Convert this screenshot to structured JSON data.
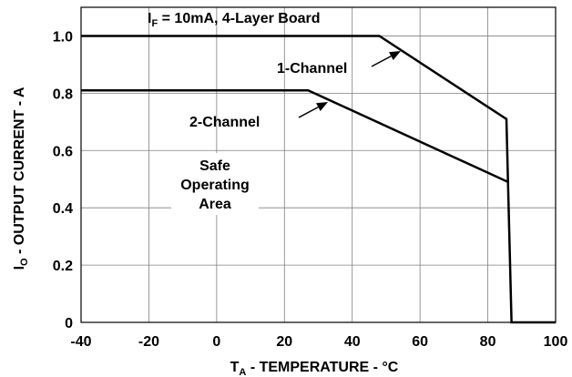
{
  "chart_data": {
    "type": "line",
    "title": "",
    "xlabel": {
      "main": "T",
      "sub": "A",
      "rest": " - TEMPERATURE - °C"
    },
    "ylabel": {
      "main": "I",
      "sub": "O",
      "rest": " - OUTPUT CURRENT - A"
    },
    "xlim": [
      -40,
      100
    ],
    "ylim": [
      0,
      1.1
    ],
    "x_ticks": [
      "-40",
      "-20",
      "0",
      "20",
      "40",
      "60",
      "80",
      "100"
    ],
    "y_ticks": [
      "0",
      "0.2",
      "0.4",
      "0.6",
      "0.8",
      "1.0"
    ],
    "grid": true,
    "series": [
      {
        "name": "1-Channel",
        "points": [
          [
            -40,
            1.0
          ],
          [
            48,
            1.0
          ],
          [
            85.5,
            0.71
          ],
          [
            87,
            0
          ],
          [
            100,
            0
          ]
        ]
      },
      {
        "name": "2-Channel",
        "points": [
          [
            -40,
            0.81
          ],
          [
            27,
            0.81
          ],
          [
            86,
            0.49
          ]
        ]
      }
    ],
    "annotations": {
      "condition": {
        "main": "I",
        "sub": "F",
        "rest": " = 10mA, 4-Layer Board"
      },
      "area_lines": [
        "Safe",
        "Operating",
        "Area"
      ]
    }
  }
}
